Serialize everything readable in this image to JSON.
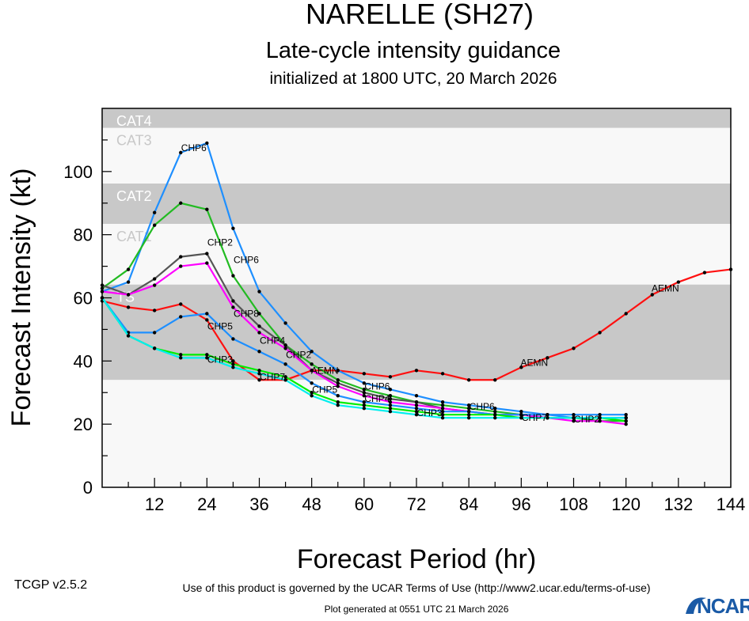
{
  "chart_data": {
    "type": "line",
    "title": "NARELLE (SH27)",
    "subtitle": "Late-cycle intensity guidance",
    "subtitle2": "initialized at 1800 UTC, 20 March 2026",
    "xlabel": "Forecast Period (hr)",
    "ylabel": "Forecast Intensity (kt)",
    "xlim": [
      0,
      144
    ],
    "ylim": [
      0,
      120
    ],
    "xticks": [
      12,
      24,
      36,
      48,
      60,
      72,
      84,
      96,
      108,
      120,
      132,
      144
    ],
    "yticks": [
      0,
      20,
      40,
      60,
      80,
      100
    ],
    "bands": [
      {
        "label": "CAT4",
        "from": 113.8,
        "to": 120,
        "fill": "#c8c8c8",
        "text": "#ffffff"
      },
      {
        "label": "CAT3",
        "from": 96.2,
        "to": 113.8,
        "fill": "#f8f8f8",
        "text": "#c8c8c8"
      },
      {
        "label": "CAT2",
        "from": 83.4,
        "to": 96.2,
        "fill": "#c8c8c8",
        "text": "#ffffff"
      },
      {
        "label": "CAT1",
        "from": 64.2,
        "to": 83.4,
        "fill": "#f8f8f8",
        "text": "#c8c8c8"
      },
      {
        "label": "TS",
        "from": 34,
        "to": 64.2,
        "fill": "#c8c8c8",
        "text": "#ffffff"
      },
      {
        "label": "",
        "from": 0,
        "to": 34,
        "fill": "#f8f8f8",
        "text": "#c8c8c8"
      }
    ],
    "series": [
      {
        "name": "AEMN",
        "color": "#ff1010",
        "start": 0,
        "step": 6,
        "values": [
          59,
          57,
          56,
          58,
          53,
          40,
          34,
          34,
          37,
          37,
          36,
          35,
          37,
          36,
          34,
          34,
          38,
          41,
          44,
          49,
          55,
          61,
          65,
          68,
          69
        ],
        "label_at": [
          8,
          16,
          21
        ]
      },
      {
        "name": "CHP6",
        "color": "#1e8fff",
        "start": 0,
        "step": 6,
        "values": [
          62,
          65,
          87,
          106,
          109,
          82,
          62,
          52,
          43,
          37,
          33,
          31,
          29,
          27,
          26,
          25,
          24,
          23,
          23,
          23,
          23
        ],
        "label_at": [
          3,
          5,
          9,
          14
        ]
      },
      {
        "name": "CHP2",
        "color": "#22bb22",
        "start": 0,
        "step": 6,
        "values": [
          63,
          69,
          83,
          90,
          88,
          67,
          55,
          45,
          39,
          34,
          31,
          29,
          27,
          26,
          25,
          24,
          23,
          22,
          22,
          21,
          21
        ],
        "label_at": [
          4,
          7,
          18
        ]
      },
      {
        "name": "CHP8",
        "color": "#555555",
        "start": 0,
        "step": 6,
        "values": [
          64,
          61,
          66,
          73,
          74,
          59,
          51,
          45,
          37,
          33,
          30,
          28,
          27,
          25,
          24,
          23,
          23,
          22,
          22,
          22,
          22
        ],
        "label_at": [
          5
        ]
      },
      {
        "name": "CHP4",
        "color": "#ff00ff",
        "start": 0,
        "step": 6,
        "values": [
          62,
          61,
          64,
          70,
          71,
          57,
          49,
          44,
          37,
          32,
          29,
          27,
          26,
          25,
          24,
          23,
          23,
          22,
          21,
          21,
          20
        ],
        "label_at": [
          5,
          9
        ]
      },
      {
        "name": "CHP5",
        "color": "#1e8fff",
        "start": 0,
        "step": 6,
        "values": [
          60,
          49,
          49,
          54,
          55,
          47,
          43,
          39,
          33,
          29,
          27,
          26,
          25,
          24,
          24,
          23,
          23,
          23,
          22,
          22,
          22
        ],
        "label_at": [
          4,
          9
        ]
      },
      {
        "name": "CHP3",
        "color": "#00ee00",
        "start": 0,
        "step": 6,
        "values": [
          60,
          48,
          44,
          42,
          42,
          39,
          37,
          35,
          30,
          27,
          26,
          25,
          24,
          23,
          23,
          23,
          22,
          22,
          22,
          22,
          21
        ],
        "label_at": [
          4,
          10
        ]
      },
      {
        "name": "CHP7",
        "color": "#00eeee",
        "start": 0,
        "step": 6,
        "values": [
          60,
          48,
          44,
          41,
          41,
          38,
          36,
          34,
          29,
          26,
          25,
          24,
          23,
          22,
          22,
          22,
          22,
          22,
          22,
          22,
          22
        ],
        "label_at": [
          4,
          10
        ]
      }
    ]
  },
  "footer": {
    "version": "TCGP v2.5.2",
    "terms": "Use of this product is governed by the UCAR Terms of Use (http://www2.ucar.edu/terms-of-use)",
    "generated": "Plot generated at 0551 UTC   21 March 2026",
    "logo": "NCAR"
  }
}
